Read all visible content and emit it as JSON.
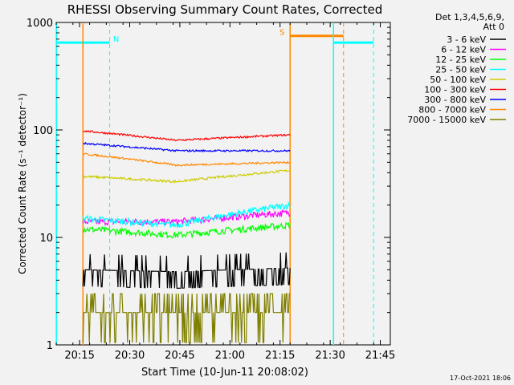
{
  "chart_data": {
    "type": "line",
    "title": "RHESSI Observing Summary Count Rates, Corrected",
    "xlabel": "Start Time (10-Jun-11 20:08:02)",
    "ylabel": "Corrected Count Rate (s⁻¹ detector⁻¹)",
    "yscale": "log",
    "ylim": [
      1,
      1000
    ],
    "xlim_minutes": [
      20.13,
      21.8
    ],
    "x_ticks": [
      "20:15",
      "20:30",
      "20:45",
      "21:00",
      "21:15",
      "21:30",
      "21:45"
    ],
    "y_ticks": [
      "1",
      "10",
      "100",
      "1000"
    ],
    "legend_header": [
      "Det 1,3,4,5,6,9,",
      "Att 0"
    ],
    "series": [
      {
        "name": "3 - 6 keV",
        "color": "#000000",
        "start": 5.0,
        "mid": 4.8,
        "end": 5.2,
        "noise": 0.18
      },
      {
        "name": "6 - 12 keV",
        "color": "#ff00ff",
        "start": 14.0,
        "mid": 14.0,
        "end": 17.0,
        "noise": 0.07
      },
      {
        "name": "12 - 25 keV",
        "color": "#00ff00",
        "start": 12.0,
        "mid": 10.5,
        "end": 13.0,
        "noise": 0.07
      },
      {
        "name": "25 - 50 keV",
        "color": "#00ffff",
        "start": 15.0,
        "mid": 13.0,
        "end": 20.0,
        "noise": 0.07
      },
      {
        "name": "50 - 100 keV",
        "color": "#cccc00",
        "start": 37.0,
        "mid": 33.0,
        "end": 42.0,
        "noise": 0.025
      },
      {
        "name": "100 - 300 keV",
        "color": "#ff0000",
        "start": 98.0,
        "mid": 80.0,
        "end": 90.0,
        "noise": 0.02
      },
      {
        "name": "300 - 800 keV",
        "color": "#0000ff",
        "start": 75.0,
        "mid": 64.0,
        "end": 64.0,
        "noise": 0.02
      },
      {
        "name": "800 - 7000 keV",
        "color": "#ff8800",
        "start": 60.0,
        "mid": 47.0,
        "end": 50.0,
        "noise": 0.02
      },
      {
        "name": "7000 - 15000 keV",
        "color": "#808000",
        "start": 2.0,
        "mid": 2.0,
        "end": 2.0,
        "noise": 0.0
      }
    ],
    "data_start_time": "20:16",
    "data_end_time": "21:18",
    "flags": [
      {
        "label": "N",
        "color": "#00ffff",
        "bar_start": "20:08",
        "bar_end": "20:24",
        "line_at": "20:24",
        "level": 650
      },
      {
        "label": "S",
        "color": "#ff8800",
        "bar_start": "21:18",
        "bar_end": "21:34",
        "line_at": "21:34",
        "level": 750
      },
      {
        "label": "",
        "color": "#00ffff",
        "bar_start": "21:31",
        "bar_end": "21:43",
        "line_at": "21:43",
        "level": 650
      }
    ],
    "timestamp": "17-Oct-2021 18:06"
  }
}
